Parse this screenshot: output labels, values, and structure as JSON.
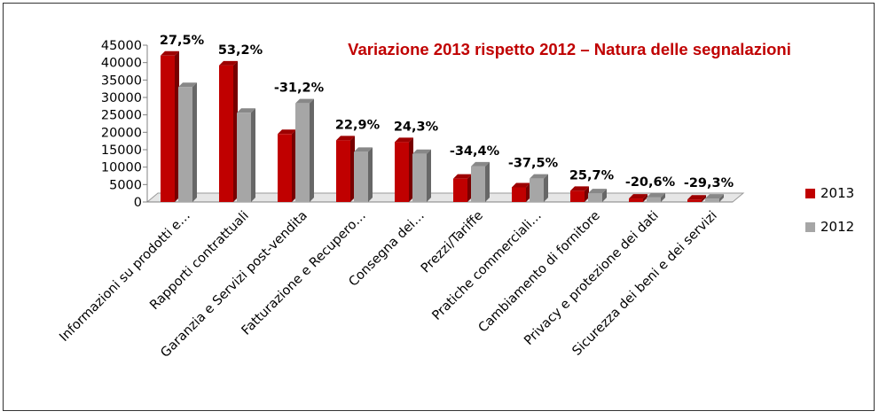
{
  "chart_data": {
    "type": "bar",
    "title": "Variazione 2013 rispetto 2012 – Natura delle segnalazioni",
    "title_color": "#c00000",
    "xlabel": "",
    "ylabel": "",
    "ylim": [
      0,
      45000
    ],
    "yticks": [
      0,
      5000,
      10000,
      15000,
      20000,
      25000,
      30000,
      35000,
      40000,
      45000
    ],
    "grid": false,
    "legend_position": "right",
    "categories": [
      "Informazioni su prodotti e…",
      "Rapporti contrattuali",
      "Garanzia e Servizi post-vendita",
      "Fatturazione e Recupero…",
      "Consegna dei…",
      "Prezzi/Tariffe",
      "Pratiche commerciali…",
      "Cambiamento di fornitore",
      "Privacy e protezione dei dati",
      "Sicurezza dei beni e dei servizi"
    ],
    "series": [
      {
        "name": "2013",
        "color": "#c00000",
        "values": [
          42000,
          39200,
          19500,
          17700,
          17200,
          6700,
          4200,
          3200,
          1000,
          700
        ]
      },
      {
        "name": "2012",
        "color": "#a6a6a6",
        "values": [
          33000,
          25600,
          28300,
          14400,
          13800,
          10200,
          6700,
          2500,
          1300,
          1000
        ]
      }
    ],
    "annotations": [
      "27,5%",
      "53,2%",
      "-31,2%",
      "22,9%",
      "24,3%",
      "-34,4%",
      "-37,5%",
      "25,7%",
      "-20,6%",
      "-29,3%"
    ]
  }
}
